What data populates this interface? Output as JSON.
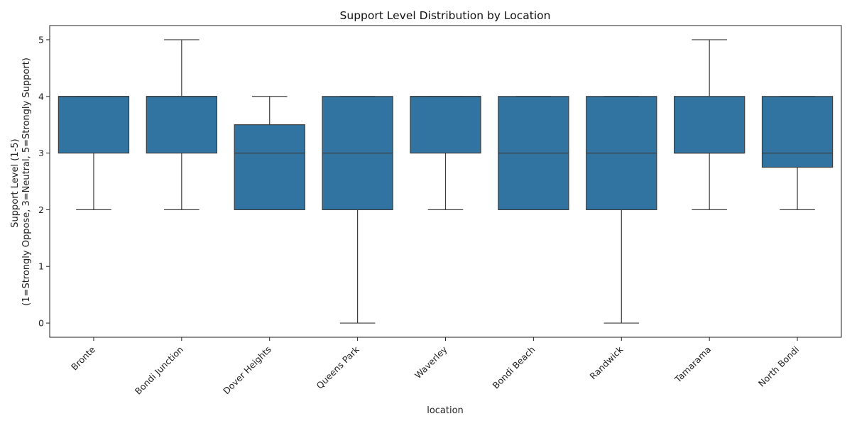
{
  "chart_data": {
    "type": "box",
    "title": "Support Level Distribution by Location",
    "xlabel": "location",
    "ylabel_line1": "Support Level (1-5)",
    "ylabel_line2": "(1=Strongly Oppose, 3=Neutral, 5=Strongly Support)",
    "ylim": [
      -0.25,
      5.25
    ],
    "yticks": [
      0,
      1,
      2,
      3,
      4,
      5
    ],
    "grid": false,
    "box_color": "#3274a1",
    "line_color": "#3d3d3d",
    "categories": [
      "Bronte",
      "Bondi Junction",
      "Dover Heights",
      "Queens Park",
      "Waverley",
      "Bondi Beach",
      "Randwick",
      "Tamarama",
      "North Bondi"
    ],
    "boxes": [
      {
        "category": "Bronte",
        "whisker_low": 2,
        "q1": 3,
        "median": 4,
        "q3": 4,
        "whisker_high": 4
      },
      {
        "category": "Bondi Junction",
        "whisker_low": 2,
        "q1": 3,
        "median": 4,
        "q3": 4,
        "whisker_high": 5
      },
      {
        "category": "Dover Heights",
        "whisker_low": 2,
        "q1": 2,
        "median": 3,
        "q3": 3.5,
        "whisker_high": 4
      },
      {
        "category": "Queens Park",
        "whisker_low": 0,
        "q1": 2,
        "median": 3,
        "q3": 4,
        "whisker_high": 4
      },
      {
        "category": "Waverley",
        "whisker_low": 2,
        "q1": 3,
        "median": 4,
        "q3": 4,
        "whisker_high": 4
      },
      {
        "category": "Bondi Beach",
        "whisker_low": 2,
        "q1": 2,
        "median": 3,
        "q3": 4,
        "whisker_high": 4
      },
      {
        "category": "Randwick",
        "whisker_low": 0,
        "q1": 2,
        "median": 3,
        "q3": 4,
        "whisker_high": 4
      },
      {
        "category": "Tamarama",
        "whisker_low": 2,
        "q1": 3,
        "median": 3,
        "q3": 4,
        "whisker_high": 5
      },
      {
        "category": "North Bondi",
        "whisker_low": 2,
        "q1": 2.75,
        "median": 3,
        "q3": 4,
        "whisker_high": 4
      }
    ]
  }
}
